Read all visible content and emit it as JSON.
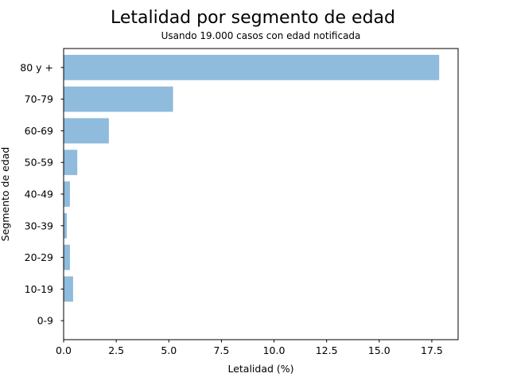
{
  "chart_data": {
    "type": "bar",
    "orientation": "horizontal",
    "title": "Letalidad por segmento de edad",
    "subtitle": "Usando 19.000 casos con edad notificada",
    "xlabel": "Letalidad (%)",
    "ylabel": "Segmento de edad",
    "categories": [
      "0-9",
      "10-19",
      "20-29",
      "30-39",
      "40-49",
      "50-59",
      "60-69",
      "70-79",
      "80 y +"
    ],
    "values": [
      0.0,
      0.45,
      0.3,
      0.15,
      0.3,
      0.65,
      2.15,
      5.2,
      17.85
    ],
    "xlim": [
      0,
      18.75
    ],
    "xticks": [
      0.0,
      2.5,
      5.0,
      7.5,
      10.0,
      12.5,
      15.0,
      17.5
    ],
    "xtick_labels": [
      "0.0",
      "2.5",
      "5.0",
      "7.5",
      "10.0",
      "12.5",
      "15.0",
      "17.5"
    ],
    "bar_color": "#8fbbdc",
    "grid": false,
    "legend": "none"
  }
}
